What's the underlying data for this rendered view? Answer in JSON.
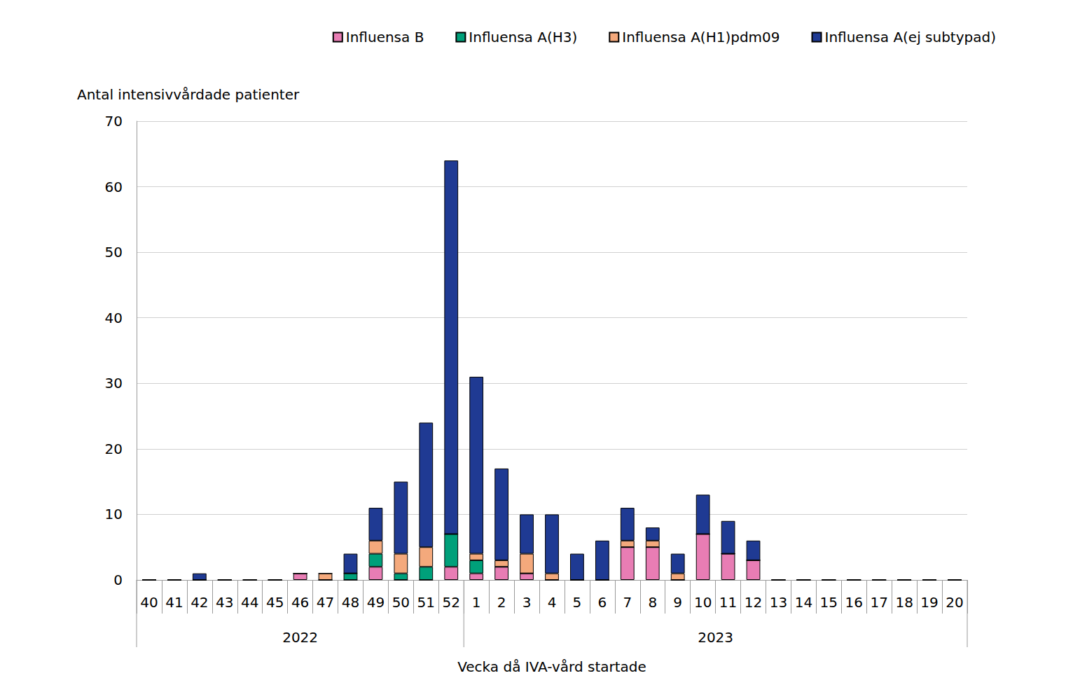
{
  "chart_data": {
    "type": "bar",
    "stacked": true,
    "y_label": "Antal intensivvårdade patienter",
    "x_label": "Vecka då IVA-vård startade",
    "categories": [
      "40",
      "41",
      "42",
      "43",
      "44",
      "45",
      "46",
      "47",
      "48",
      "49",
      "50",
      "51",
      "52",
      "1",
      "2",
      "3",
      "4",
      "5",
      "6",
      "7",
      "8",
      "9",
      "10",
      "11",
      "12",
      "13",
      "14",
      "15",
      "16",
      "17",
      "18",
      "19",
      "20"
    ],
    "category_groups": [
      {
        "label": "2022",
        "count": 13
      },
      {
        "label": "2023",
        "count": 20
      }
    ],
    "series": [
      {
        "name": "Influensa B",
        "color": "#e87db4",
        "values": [
          0,
          0,
          0,
          0,
          0,
          0,
          1,
          0,
          0,
          2,
          0,
          0,
          2,
          1,
          2,
          1,
          0,
          0,
          0,
          5,
          5,
          0,
          7,
          4,
          3,
          0,
          0,
          0,
          0,
          0,
          0,
          0,
          0
        ]
      },
      {
        "name": "Influensa A(H3)",
        "color": "#00a07a",
        "values": [
          0,
          0,
          0,
          0,
          0,
          0,
          0,
          0,
          1,
          2,
          1,
          2,
          5,
          2,
          0,
          0,
          0,
          0,
          0,
          0,
          0,
          0,
          0,
          0,
          0,
          0,
          0,
          0,
          0,
          0,
          0,
          0,
          0
        ]
      },
      {
        "name": "Influensa A(H1)pdm09",
        "color": "#f4a97c",
        "values": [
          0,
          0,
          0,
          0,
          0,
          0,
          0,
          1,
          0,
          2,
          3,
          3,
          0,
          1,
          1,
          3,
          1,
          0,
          0,
          1,
          1,
          1,
          0,
          0,
          0,
          0,
          0,
          0,
          0,
          0,
          0,
          0,
          0
        ]
      },
      {
        "name": "Influensa A(ej subtypad)",
        "color": "#1f3a93",
        "values": [
          0,
          0,
          1,
          0,
          0,
          0,
          0,
          0,
          3,
          5,
          11,
          19,
          57,
          27,
          14,
          6,
          9,
          4,
          6,
          5,
          2,
          3,
          6,
          5,
          3,
          0,
          0,
          0,
          0,
          0,
          0,
          0,
          0
        ]
      }
    ],
    "ylim": [
      0,
      70
    ],
    "yticks": [
      0,
      10,
      20,
      30,
      40,
      50,
      60,
      70
    ],
    "grid": true,
    "legend": "top-right"
  }
}
